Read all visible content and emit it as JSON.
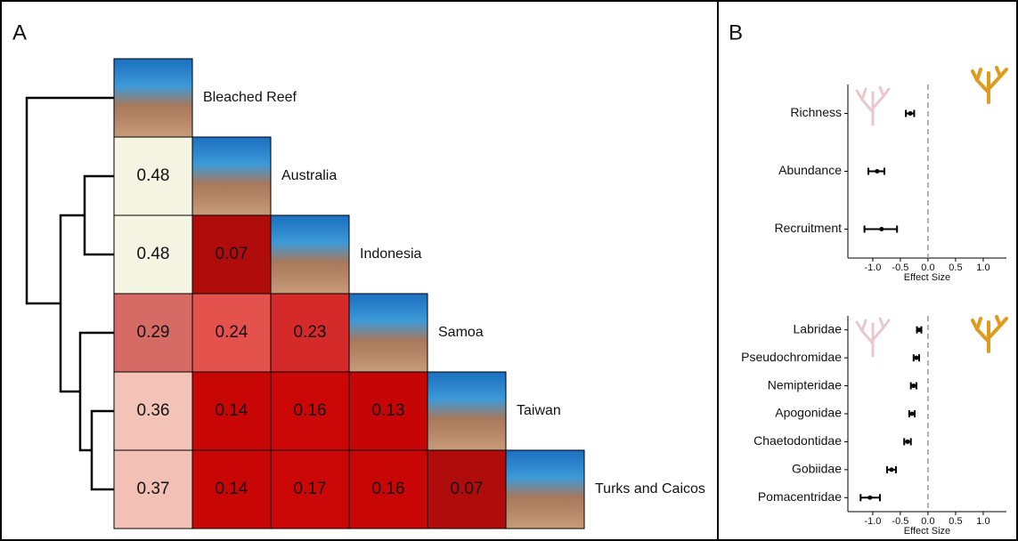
{
  "chart_data": [
    {
      "type": "heatmap",
      "panel": "A",
      "labels": [
        "Bleached Reef",
        "Australia",
        "Indonesia",
        "Samoa",
        "Taiwan",
        "Turks and Caicos"
      ],
      "values": [
        [
          0.48
        ],
        [
          0.48,
          0.07
        ],
        [
          0.29,
          0.24,
          0.23
        ],
        [
          0.36,
          0.14,
          0.16,
          0.13
        ],
        [
          0.37,
          0.14,
          0.17,
          0.16,
          0.07
        ]
      ],
      "colors": [
        [
          "#f4f5e2"
        ],
        [
          "#f4f5e2",
          "#b00c0c"
        ],
        [
          "#d66b66",
          "#e4524e",
          "#d42a2a"
        ],
        [
          "#f3c3b8",
          "#c90606",
          "#cb0707",
          "#c60606"
        ],
        [
          "#f2c0b4",
          "#c90606",
          "#cb0707",
          "#c90606",
          "#b00c0c"
        ]
      ]
    },
    {
      "type": "forest",
      "panel": "B",
      "categories": [
        "Richness",
        "Abundance",
        "Recruitment"
      ],
      "values": [
        -0.32,
        -0.92,
        -0.84
      ],
      "lower": [
        -0.4,
        -1.08,
        -1.15
      ],
      "upper": [
        -0.25,
        -0.79,
        -0.56
      ],
      "xlabel": "Effect Size",
      "xlim": [
        -1.45,
        1.42
      ],
      "xticks": [
        {
          "value": -1,
          "label": "-1.0"
        },
        -0.5,
        {
          "value": 0,
          "label": "0.0"
        },
        0.5,
        {
          "value": 1,
          "label": "1.0"
        }
      ],
      "reference_line": 0,
      "color": "#000000"
    },
    {
      "type": "forest",
      "categories": [
        "Labridae",
        "Pseudochromidae",
        "Nemipteridae",
        "Apogonidae",
        "Chaetodontidae",
        "Gobiidae",
        "Pomacentridae"
      ],
      "values": [
        -0.16,
        -0.21,
        -0.26,
        -0.29,
        -0.37,
        -0.66,
        -1.05
      ],
      "lower": [
        -0.2,
        -0.26,
        -0.31,
        -0.34,
        -0.43,
        -0.74,
        -1.22
      ],
      "upper": [
        -0.12,
        -0.16,
        -0.21,
        -0.24,
        -0.31,
        -0.58,
        -0.87
      ],
      "xlabel": "Effect Size",
      "xlim": [
        -1.45,
        1.42
      ],
      "xticks": [
        {
          "value": -1,
          "label": "-1.0"
        },
        -0.5,
        {
          "value": 0,
          "label": "0.0"
        },
        0.5,
        {
          "value": 1,
          "label": "1.0"
        }
      ],
      "reference_line": 0,
      "color": "#000000"
    }
  ]
}
